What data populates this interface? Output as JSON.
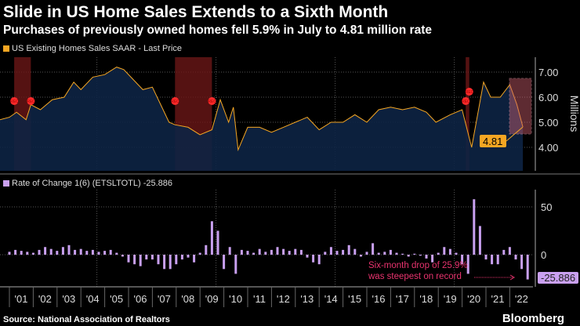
{
  "title": "Slide in US Home Sales Extends to a Sixth Month",
  "subtitle": "Purchases of previously owned homes fell 5.9% in July to 4.81 million rate",
  "source": "Source: National Association of Realtors",
  "brand": "Bloomberg",
  "chart_data": [
    {
      "type": "area",
      "legend": "US Existing Homes Sales SAAR - Last Price",
      "ylabel": "Millions",
      "ylim": [
        3.0,
        7.6
      ],
      "yticks": [
        "4.00",
        "5.00",
        "6.00",
        "7.00"
      ],
      "last_value_label": "4.81",
      "color": "#f5a623",
      "fill": "#0d2444",
      "recessions": [
        [
          2001.2,
          2001.9
        ],
        [
          2007.95,
          2009.5
        ],
        [
          2020.15,
          2020.3
        ]
      ],
      "recession_marker": "REC",
      "x": [
        2000.6,
        2001.0,
        2001.3,
        2001.7,
        2001.9,
        2002.3,
        2002.8,
        2003.3,
        2003.7,
        2004.0,
        2004.5,
        2005.0,
        2005.5,
        2005.8,
        2006.2,
        2006.6,
        2007.0,
        2007.3,
        2007.7,
        2007.95,
        2008.5,
        2009.0,
        2009.5,
        2009.85,
        2010.2,
        2010.4,
        2010.6,
        2011.0,
        2011.5,
        2012.0,
        2012.5,
        2013.0,
        2013.5,
        2014.0,
        2014.5,
        2015.0,
        2015.5,
        2016.0,
        2016.5,
        2017.0,
        2017.5,
        2018.0,
        2018.5,
        2018.9,
        2019.5,
        2020.0,
        2020.4,
        2020.9,
        2021.2,
        2021.6,
        2022.0,
        2022.3,
        2022.55
      ],
      "y": [
        5.1,
        5.2,
        5.4,
        5.1,
        5.7,
        5.5,
        5.9,
        6.0,
        6.6,
        6.3,
        6.8,
        6.9,
        7.2,
        7.1,
        6.7,
        6.3,
        6.4,
        5.8,
        5.0,
        4.9,
        4.8,
        4.5,
        4.7,
        5.9,
        5.0,
        5.6,
        3.9,
        4.8,
        4.8,
        4.6,
        4.8,
        5.0,
        5.2,
        4.7,
        5.0,
        5.0,
        5.3,
        5.0,
        5.5,
        5.6,
        5.5,
        5.6,
        5.4,
        5.0,
        5.3,
        5.5,
        4.0,
        6.6,
        6.0,
        6.0,
        6.5,
        5.7,
        4.81
      ]
    },
    {
      "type": "bar",
      "legend": "Rate of Change 1(6) (ETSLTOTL) -25.886",
      "ylim": [
        -30,
        65
      ],
      "yticks": [
        "0",
        "50"
      ],
      "last_value_label": "-25.886",
      "color": "#c9a0f0",
      "xticks": [
        "'01",
        "'02",
        "'03",
        "'04",
        "'05",
        "'06",
        "'07",
        "'08",
        "'09",
        "'10",
        "'11",
        "'12",
        "'13",
        "'14",
        "'15",
        "'16",
        "'17",
        "'18",
        "'19",
        "'20",
        "'21",
        "'22"
      ],
      "annotation": "Six-month drop of 25.9% was steepest on record",
      "annotation_lines": [
        "Six-month drop of 25.9%",
        "was steepest on record"
      ],
      "annotation_color": "#e8336e",
      "x_start": 2000.75,
      "x_step": 0.25,
      "values": [
        0,
        3,
        5,
        4,
        3,
        2,
        5,
        8,
        6,
        4,
        8,
        10,
        5,
        6,
        4,
        5,
        3,
        4,
        5,
        2,
        -2,
        -8,
        -10,
        -12,
        -5,
        -5,
        -10,
        -15,
        -15,
        -10,
        -5,
        -3,
        -8,
        2,
        10,
        35,
        25,
        -15,
        8,
        -20,
        5,
        4,
        2,
        6,
        3,
        5,
        8,
        6,
        4,
        6,
        5,
        -3,
        -8,
        -10,
        3,
        8,
        4,
        5,
        10,
        6,
        -2,
        3,
        12,
        2,
        3,
        5,
        2,
        1,
        -2,
        1,
        -1,
        -4,
        -8,
        2,
        8,
        6,
        2,
        -10,
        -20,
        58,
        30,
        -5,
        -10,
        -10,
        5,
        8,
        -5,
        -15,
        -25.886
      ]
    }
  ]
}
